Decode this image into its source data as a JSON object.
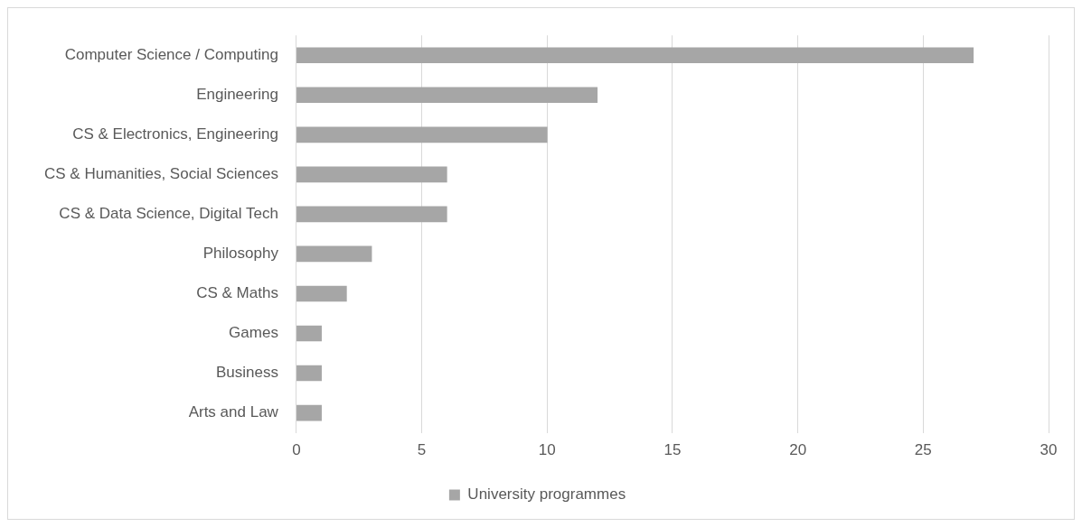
{
  "chart_data": {
    "type": "bar",
    "orientation": "horizontal",
    "categories": [
      "Computer Science / Computing",
      "Engineering",
      "CS & Electronics, Engineering",
      "CS & Humanities, Social Sciences",
      "CS & Data Science, Digital Tech",
      "Philosophy",
      "CS & Maths",
      "Games",
      "Business",
      "Arts and Law"
    ],
    "series": [
      {
        "name": "University programmes",
        "color": "#a6a6a6",
        "values": [
          27,
          12,
          10,
          6,
          6,
          3,
          2,
          1,
          1,
          1
        ]
      }
    ],
    "xlim": [
      0,
      30
    ],
    "xticks": [
      0,
      5,
      10,
      15,
      20,
      25,
      30
    ],
    "grid": "x",
    "legend": "bottom"
  }
}
